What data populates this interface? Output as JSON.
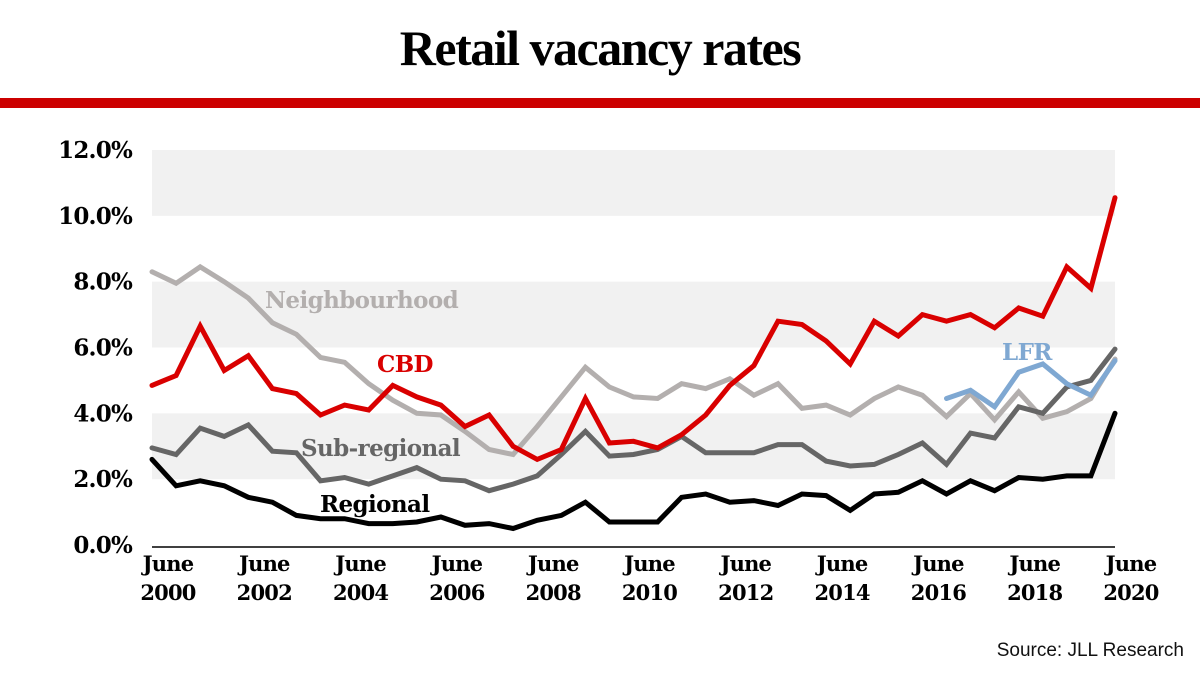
{
  "title": "Retail vacancy rates",
  "source": "Source: JLL Research",
  "colors": {
    "accent_rule": "#cc0000",
    "band": "#f1f1f1",
    "cbd": "#d90000",
    "neighbourhood": "#b3afae",
    "sub_regional": "#666666",
    "regional": "#000000",
    "lfr": "#7fa8d2"
  },
  "chart_data": {
    "type": "line",
    "title": "Retail vacancy rates",
    "xlabel": "",
    "ylabel": "",
    "ylim": [
      0,
      12
    ],
    "grid": "alternating horizontal bands",
    "x_period_start": "June 2000",
    "x_period_end": "June 2020",
    "x_interval": "half-yearly",
    "point_count": 41,
    "y_ticks": [
      "0.0%",
      "2.0%",
      "4.0%",
      "6.0%",
      "8.0%",
      "10.0%",
      "12.0%"
    ],
    "y_tick_values": [
      0,
      2,
      4,
      6,
      8,
      10,
      12
    ],
    "x_ticks": [
      {
        "index": 0,
        "line1": "June",
        "line2": "2000"
      },
      {
        "index": 4,
        "line1": "June",
        "line2": "2002"
      },
      {
        "index": 8,
        "line1": "June",
        "line2": "2004"
      },
      {
        "index": 12,
        "line1": "June",
        "line2": "2006"
      },
      {
        "index": 16,
        "line1": "June",
        "line2": "2008"
      },
      {
        "index": 20,
        "line1": "June",
        "line2": "2010"
      },
      {
        "index": 24,
        "line1": "June",
        "line2": "2012"
      },
      {
        "index": 28,
        "line1": "June",
        "line2": "2014"
      },
      {
        "index": 32,
        "line1": "June",
        "line2": "2016"
      },
      {
        "index": 36,
        "line1": "June",
        "line2": "2018"
      },
      {
        "index": 40,
        "line1": "June",
        "line2": "2020"
      }
    ],
    "series": [
      {
        "name": "Neighbourhood",
        "key": "neighbourhood",
        "start_index": 0,
        "values": [
          8.3,
          7.95,
          8.45,
          8.0,
          7.5,
          6.75,
          6.4,
          5.7,
          5.55,
          4.9,
          4.4,
          4.0,
          3.95,
          3.45,
          2.9,
          2.75,
          3.6,
          4.5,
          5.4,
          4.8,
          4.5,
          4.45,
          4.9,
          4.75,
          5.05,
          4.55,
          4.9,
          4.15,
          4.25,
          3.95,
          4.45,
          4.8,
          4.55,
          3.9,
          4.6,
          3.8,
          4.65,
          3.85,
          4.05,
          4.45,
          5.65
        ]
      },
      {
        "name": "Sub-regional",
        "key": "sub_regional",
        "start_index": 0,
        "values": [
          2.95,
          2.75,
          3.55,
          3.3,
          3.65,
          2.85,
          2.8,
          1.95,
          2.05,
          1.85,
          2.1,
          2.35,
          2.0,
          1.95,
          1.65,
          1.85,
          2.1,
          2.75,
          3.45,
          2.7,
          2.75,
          2.9,
          3.3,
          2.8,
          2.8,
          2.8,
          3.05,
          3.05,
          2.55,
          2.4,
          2.45,
          2.75,
          3.1,
          2.45,
          3.4,
          3.25,
          4.2,
          4.0,
          4.8,
          5.0,
          5.95
        ]
      },
      {
        "name": "Regional",
        "key": "regional",
        "start_index": 0,
        "values": [
          2.6,
          1.8,
          1.95,
          1.8,
          1.45,
          1.3,
          0.9,
          0.8,
          0.8,
          0.65,
          0.65,
          0.7,
          0.85,
          0.6,
          0.65,
          0.5,
          0.75,
          0.9,
          1.3,
          0.7,
          0.7,
          0.7,
          1.45,
          1.55,
          1.3,
          1.35,
          1.2,
          1.55,
          1.5,
          1.05,
          1.55,
          1.6,
          1.95,
          1.55,
          1.95,
          1.65,
          2.05,
          2.0,
          2.1,
          2.1,
          4.0
        ]
      },
      {
        "name": "CBD",
        "key": "cbd",
        "start_index": 0,
        "values": [
          4.85,
          5.15,
          6.65,
          5.3,
          5.75,
          4.75,
          4.6,
          3.95,
          4.25,
          4.1,
          4.85,
          4.5,
          4.25,
          3.6,
          3.95,
          3.0,
          2.6,
          2.9,
          4.45,
          3.1,
          3.15,
          2.95,
          3.35,
          3.95,
          4.85,
          5.45,
          6.8,
          6.7,
          6.2,
          5.5,
          6.8,
          6.35,
          7.0,
          6.8,
          7.0,
          6.6,
          7.2,
          6.95,
          8.45,
          7.8,
          10.55
        ]
      },
      {
        "name": "LFR",
        "key": "lfr",
        "start_index": 33,
        "values": [
          4.45,
          4.7,
          4.2,
          5.25,
          5.5,
          4.9,
          4.55,
          5.6
        ]
      }
    ],
    "annotations": [
      {
        "text": "Neighbourhood",
        "series": "neighbourhood"
      },
      {
        "text": "CBD",
        "series": "cbd"
      },
      {
        "text": "Sub-regional",
        "series": "sub_regional"
      },
      {
        "text": "Regional",
        "series": "regional"
      },
      {
        "text": "LFR",
        "series": "lfr"
      }
    ]
  }
}
